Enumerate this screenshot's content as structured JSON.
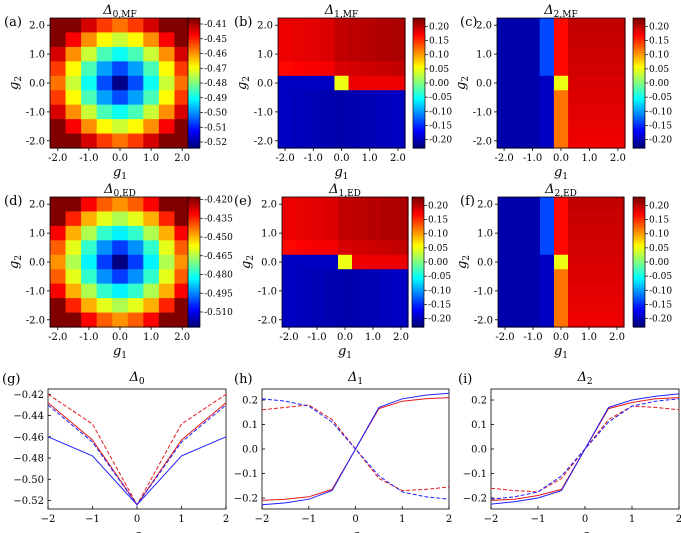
{
  "chart_data": [
    {
      "id": "a",
      "type": "heatmap",
      "panel_label": "(a)",
      "title": "Δ0,MF",
      "xlabel": "g1",
      "ylabel": "g2",
      "x_ticks": [
        "-2.0",
        "-1.0",
        "0.0",
        "1.0",
        "2.0"
      ],
      "y_ticks": [
        "2.0",
        "1.0",
        "0.0",
        "-1.0",
        "-2.0"
      ],
      "colorbar": {
        "range": [
          -0.525,
          -0.405
        ],
        "ticks": [
          "-0.41",
          "-0.45",
          "-0.46",
          "-0.47",
          "-0.48",
          "-0.49",
          "-0.50",
          "-0.51",
          "-0.52"
        ]
      },
      "pattern": "bowl",
      "extreme": -0.4,
      "center": -0.524
    },
    {
      "id": "b",
      "type": "heatmap",
      "panel_label": "(b)",
      "title": "Δ1,MF",
      "xlabel": "g1",
      "ylabel": "g2",
      "x_ticks": [
        "-2.0",
        "-1.0",
        "0.0",
        "1.0",
        "2.0"
      ],
      "y_ticks": [
        "2.0",
        "1.0",
        "0.0",
        "-1.0",
        "-2.0"
      ],
      "colorbar": {
        "range": [
          -0.23,
          0.23
        ],
        "ticks": [
          "0.20",
          "0.15",
          "0.10",
          "0.05",
          "0.00",
          "-0.05",
          "-0.10",
          "-0.15",
          "-0.20"
        ]
      },
      "pattern": "d1"
    },
    {
      "id": "c",
      "type": "heatmap",
      "panel_label": "(c)",
      "title": "Δ2,MF",
      "xlabel": "g1",
      "ylabel": "g2",
      "x_ticks": [
        "-2.0",
        "-1.0",
        "0.0",
        "1.0",
        "2.0"
      ],
      "y_ticks": [
        "2.0",
        "1.0",
        "0.0",
        "-1.0",
        "-2.0"
      ],
      "colorbar": {
        "range": [
          -0.23,
          0.23
        ],
        "ticks": [
          "0.20",
          "0.15",
          "0.10",
          "0.05",
          "0.00",
          "-0.05",
          "-0.10",
          "-0.15",
          "-0.20"
        ]
      },
      "pattern": "d2"
    },
    {
      "id": "d",
      "type": "heatmap",
      "panel_label": "(d)",
      "title": "Δ0,ED",
      "xlabel": "g1",
      "ylabel": "g2",
      "x_ticks": [
        "-2.0",
        "-1.0",
        "0.0",
        "1.0",
        "2.0"
      ],
      "y_ticks": [
        "2.0",
        "1.0",
        "0.0",
        "-1.0",
        "-2.0"
      ],
      "colorbar": {
        "range": [
          -0.522,
          -0.418
        ],
        "ticks": [
          "-0.420",
          "-0.435",
          "-0.450",
          "-0.465",
          "-0.480",
          "-0.495",
          "-0.510"
        ]
      },
      "pattern": "bowl",
      "extreme": -0.418,
      "center": -0.522
    },
    {
      "id": "e",
      "type": "heatmap",
      "panel_label": "(e)",
      "title": "Δ1,ED",
      "xlabel": "g1",
      "ylabel": "g2",
      "x_ticks": [
        "-2.0",
        "-1.0",
        "0.0",
        "1.0",
        "2.0"
      ],
      "y_ticks": [
        "2.0",
        "1.0",
        "0.0",
        "-1.0",
        "-2.0"
      ],
      "colorbar": {
        "range": [
          -0.23,
          0.23
        ],
        "ticks": [
          "0.20",
          "0.15",
          "0.10",
          "0.05",
          "0.00",
          "-0.05",
          "-0.10",
          "-0.15",
          "-0.20"
        ]
      },
      "pattern": "d1"
    },
    {
      "id": "f",
      "type": "heatmap",
      "panel_label": "(f)",
      "title": "Δ2,ED",
      "xlabel": "g1",
      "ylabel": "g2",
      "x_ticks": [
        "-2.0",
        "-1.0",
        "0.0",
        "1.0",
        "2.0"
      ],
      "y_ticks": [
        "2.0",
        "1.0",
        "0.0",
        "-1.0",
        "-2.0"
      ],
      "colorbar": {
        "range": [
          -0.23,
          0.23
        ],
        "ticks": [
          "0.20",
          "0.15",
          "0.10",
          "0.05",
          "0.00",
          "-0.05",
          "-0.10",
          "-0.15",
          "-0.20"
        ]
      },
      "pattern": "d2"
    },
    {
      "id": "g",
      "type": "line",
      "panel_label": "(g)",
      "title": "Δ0",
      "xlabel": "g",
      "x_ticks": [
        "-2",
        "-1",
        "0",
        "1",
        "2"
      ],
      "y_ticks": [
        "-0.42",
        "-0.44",
        "-0.46",
        "-0.48",
        "-0.50",
        "-0.52"
      ],
      "xlim": [
        -2,
        2
      ],
      "ylim": [
        -0.528,
        -0.415
      ],
      "x": [
        -2,
        -1,
        0,
        1,
        2
      ],
      "series": [
        {
          "color": "#e41a1c",
          "dash": "solid",
          "values": [
            -0.428,
            -0.463,
            -0.524,
            -0.463,
            -0.428
          ]
        },
        {
          "color": "#e41a1c",
          "dash": "dashed",
          "values": [
            -0.42,
            -0.448,
            -0.524,
            -0.448,
            -0.42
          ]
        },
        {
          "color": "#1f1fff",
          "dash": "solid",
          "values": [
            -0.46,
            -0.478,
            -0.524,
            -0.478,
            -0.46
          ]
        },
        {
          "color": "#1f1fff",
          "dash": "dashed",
          "values": [
            -0.43,
            -0.465,
            -0.524,
            -0.465,
            -0.43
          ]
        }
      ]
    },
    {
      "id": "h",
      "type": "line",
      "panel_label": "(h)",
      "title": "Δ1",
      "xlabel": "g",
      "x_ticks": [
        "-2",
        "-1",
        "0",
        "1",
        "2"
      ],
      "y_ticks": [
        "0.2",
        "0.1",
        "0.0",
        "-0.1",
        "-0.2"
      ],
      "xlim": [
        -2,
        2
      ],
      "ylim": [
        -0.245,
        0.245
      ],
      "x": [
        -2,
        -1.5,
        -1,
        -0.5,
        0,
        0.5,
        1,
        1.5,
        2
      ],
      "series": [
        {
          "color": "#e41a1c",
          "dash": "solid",
          "values": [
            -0.21,
            -0.205,
            -0.195,
            -0.165,
            0.0,
            0.165,
            0.195,
            0.205,
            0.21
          ]
        },
        {
          "color": "#1f1fff",
          "dash": "solid",
          "values": [
            -0.228,
            -0.22,
            -0.205,
            -0.17,
            0.0,
            0.17,
            0.205,
            0.22,
            0.228
          ]
        },
        {
          "color": "#e41a1c",
          "dash": "dashed",
          "values": [
            0.16,
            0.17,
            0.18,
            0.12,
            0.0,
            -0.12,
            -0.17,
            -0.165,
            -0.155
          ]
        },
        {
          "color": "#1f1fff",
          "dash": "dashed",
          "values": [
            0.205,
            0.195,
            0.175,
            0.11,
            0.0,
            -0.11,
            -0.175,
            -0.195,
            -0.205
          ]
        }
      ]
    },
    {
      "id": "i",
      "type": "line",
      "panel_label": "(i)",
      "title": "Δ2",
      "xlabel": "g",
      "x_ticks": [
        "-2",
        "-1",
        "0",
        "1",
        "2"
      ],
      "y_ticks": [
        "0.2",
        "0.1",
        "0.0",
        "-0.1",
        "-0.2"
      ],
      "xlim": [
        -2,
        2
      ],
      "ylim": [
        -0.245,
        0.245
      ],
      "x": [
        -2,
        -1.5,
        -1,
        -0.5,
        0,
        0.5,
        1,
        1.5,
        2
      ],
      "series": [
        {
          "color": "#e41a1c",
          "dash": "solid",
          "values": [
            -0.21,
            -0.205,
            -0.19,
            -0.165,
            0.0,
            0.165,
            0.19,
            0.205,
            0.21
          ]
        },
        {
          "color": "#1f1fff",
          "dash": "solid",
          "values": [
            -0.225,
            -0.215,
            -0.2,
            -0.17,
            0.0,
            0.17,
            0.2,
            0.215,
            0.225
          ]
        },
        {
          "color": "#e41a1c",
          "dash": "dashed",
          "values": [
            -0.16,
            -0.17,
            -0.175,
            -0.12,
            0.0,
            0.12,
            0.175,
            0.17,
            0.16
          ]
        },
        {
          "color": "#1f1fff",
          "dash": "dashed",
          "values": [
            -0.205,
            -0.195,
            -0.175,
            -0.11,
            0.0,
            0.11,
            0.175,
            0.195,
            0.205
          ]
        }
      ]
    }
  ]
}
